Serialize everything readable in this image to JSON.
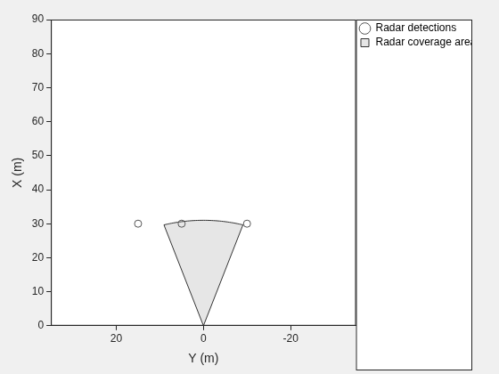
{
  "chart_data": {
    "type": "scatter",
    "xlabel": "Y (m)",
    "ylabel": "X (m)",
    "xlim": [
      35,
      -35
    ],
    "xticks": [
      20,
      0,
      -20
    ],
    "ylim": [
      0,
      90
    ],
    "yticks": [
      0,
      10,
      20,
      30,
      40,
      50,
      60,
      70,
      80,
      90
    ],
    "grid": false,
    "legend": "right",
    "series": [
      {
        "name": "Radar coverage area",
        "type": "area",
        "color": "#e6e6e6",
        "coverage": {
          "origin": [
            0,
            0
          ],
          "range": 31,
          "field_of_view": 34
        }
      },
      {
        "name": "Radar detections",
        "type": "scatter",
        "marker": "circle",
        "color": "#555555",
        "x": [
          15,
          5,
          -10
        ],
        "values": [
          30,
          30,
          30
        ]
      }
    ]
  }
}
